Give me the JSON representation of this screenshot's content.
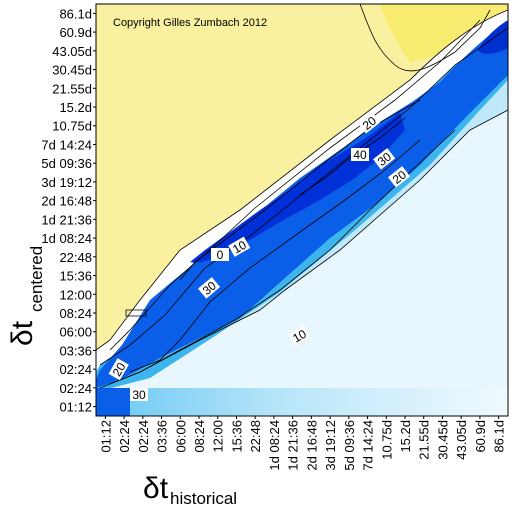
{
  "chart_data": {
    "type": "heatmap",
    "copyright": "Copyright Gilles Zumbach 2012",
    "xlabel": {
      "symbol": "δt",
      "subscript": "historical"
    },
    "ylabel": {
      "symbol": "δt",
      "subscript": "centered"
    },
    "x_ticks": [
      "01:12",
      "02:24",
      "02:24",
      "03:36",
      "06:00",
      "08:24",
      "12:00",
      "15:36",
      "22:48",
      "1d 08:24",
      "1d 21:36",
      "2d 16:48",
      "3d 19:12",
      "5d 09:36",
      "7d 14:24",
      "10.75d",
      "15.2d",
      "21.55d",
      "30.45d",
      "43.05d",
      "60.9d",
      "86.1d"
    ],
    "y_ticks": [
      "01:12",
      "02:24",
      "02:24",
      "03:36",
      "06:00",
      "08:24",
      "12:00",
      "15:36",
      "22:48",
      "1d 08:24",
      "1d 21:36",
      "2d 16:48",
      "3d 19:12",
      "5d 09:36",
      "7d 14:24",
      "10.75d",
      "15.2d",
      "21.55d",
      "30.45d",
      "43.05d",
      "60.9d",
      "86.1d"
    ],
    "contour_labels": [
      "20",
      "40",
      "30",
      "20",
      "10",
      "0",
      "30",
      "10",
      "20",
      "30"
    ],
    "colors": {
      "positive": "#f8f088",
      "zero": "#ffffff",
      "light_negative": "#b8e8f8",
      "mid_negative": "#20a8e8",
      "strong_negative": "#0838e0",
      "deepest_negative": "#001890"
    }
  }
}
